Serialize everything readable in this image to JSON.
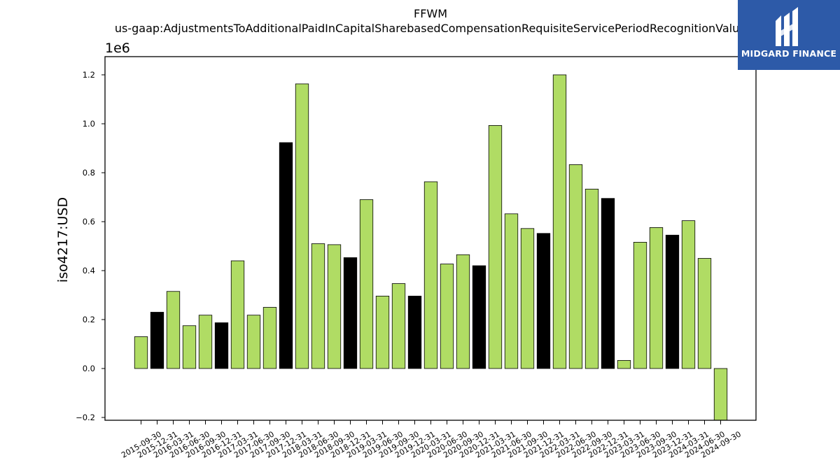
{
  "chart_data": {
    "type": "bar",
    "title": "FFWM",
    "subtitle": "us-gaap:AdjustmentsToAdditionalPaidInCapitalSharebasedCompensationRequisiteServicePeriodRecognitionValue",
    "ylabel": "iso4217:USD",
    "xlabel": "",
    "offset_label": "1e6",
    "ylim": [
      -0.21,
      1.275
    ],
    "y_scale": 1000000,
    "yticks": [
      -0.2,
      0.0,
      0.2,
      0.4,
      0.6,
      0.8,
      1.0,
      1.2
    ],
    "ytick_labels": [
      "−0.2",
      "0.0",
      "0.2",
      "0.4",
      "0.6",
      "0.8",
      "1.0",
      "1.2"
    ],
    "grid": false,
    "colors": {
      "default": "#b0dc64",
      "q4": "#000000"
    },
    "categories": [
      "2015-09-30",
      "2015-12-31",
      "2016-03-31",
      "2016-06-30",
      "2016-09-30",
      "2016-12-31",
      "2017-03-31",
      "2017-06-30",
      "2017-09-30",
      "2017-12-31",
      "2018-03-31",
      "2018-06-30",
      "2018-09-30",
      "2018-12-31",
      "2019-03-31",
      "2019-06-30",
      "2019-09-30",
      "2019-12-31",
      "2020-03-31",
      "2020-06-30",
      "2020-09-30",
      "2020-12-31",
      "2021-03-31",
      "2021-06-30",
      "2021-09-30",
      "2021-12-31",
      "2022-03-31",
      "2022-06-30",
      "2022-09-30",
      "2022-12-31",
      "2023-03-31",
      "2023-06-30",
      "2023-09-30",
      "2023-12-31",
      "2024-03-31",
      "2024-06-30",
      "2024-09-30"
    ],
    "values": [
      0.13,
      0.23,
      0.315,
      0.175,
      0.218,
      0.187,
      0.44,
      0.218,
      0.25,
      0.923,
      1.163,
      0.51,
      0.506,
      0.453,
      0.69,
      0.296,
      0.347,
      0.296,
      0.763,
      0.427,
      0.465,
      0.42,
      0.993,
      0.632,
      0.572,
      0.552,
      1.2,
      0.833,
      0.733,
      0.695,
      0.033,
      0.516,
      0.576,
      0.545,
      0.604,
      0.45,
      -0.215
    ],
    "bar_colors": [
      "#b0dc64",
      "#000000",
      "#b0dc64",
      "#b0dc64",
      "#b0dc64",
      "#000000",
      "#b0dc64",
      "#b0dc64",
      "#b0dc64",
      "#000000",
      "#b0dc64",
      "#b0dc64",
      "#b0dc64",
      "#000000",
      "#b0dc64",
      "#b0dc64",
      "#b0dc64",
      "#000000",
      "#b0dc64",
      "#b0dc64",
      "#b0dc64",
      "#000000",
      "#b0dc64",
      "#b0dc64",
      "#b0dc64",
      "#000000",
      "#b0dc64",
      "#b0dc64",
      "#b0dc64",
      "#000000",
      "#b0dc64",
      "#b0dc64",
      "#b0dc64",
      "#000000",
      "#b0dc64",
      "#b0dc64",
      "#b0dc64"
    ]
  },
  "logo": {
    "text": "MIDGARD FINANCE",
    "icon": "midgard-logo-icon"
  }
}
